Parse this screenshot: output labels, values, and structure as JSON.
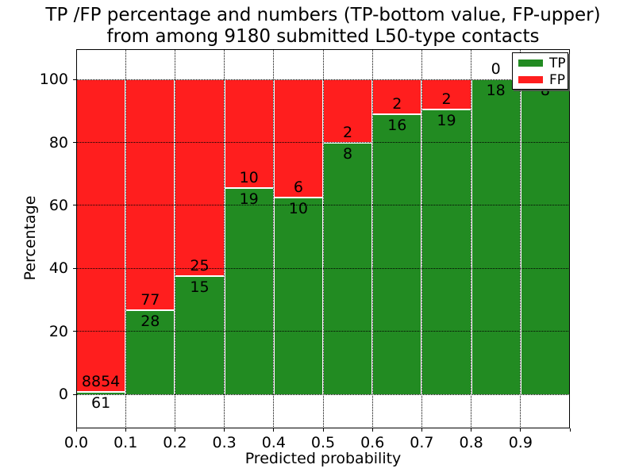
{
  "title": {
    "line1": "TP /FP percentage and numbers (TP-bottom value, FP-upper)",
    "line2": "from among 9180 submitted L50-type contacts"
  },
  "axes": {
    "xlabel": "Predicted probability",
    "ylabel": "Percentage"
  },
  "legend": {
    "items": [
      {
        "label": "TP",
        "color": "#228b22"
      },
      {
        "label": "FP",
        "color": "#ff1e1e"
      }
    ]
  },
  "chart_data": {
    "type": "bar",
    "stacked": true,
    "normalized_to": 100,
    "title": "TP /FP percentage and numbers (TP-bottom value, FP-upper)\nfrom among 9180 submitted L50-type contacts",
    "xlabel": "Predicted probability",
    "ylabel": "Percentage",
    "total_contacts": 9180,
    "categories": [
      "0.0-0.1",
      "0.1-0.2",
      "0.2-0.3",
      "0.3-0.4",
      "0.4-0.5",
      "0.5-0.6",
      "0.6-0.7",
      "0.7-0.8",
      "0.8-0.9",
      "0.9-1.0"
    ],
    "series": [
      {
        "name": "TP",
        "color": "#228b22",
        "counts": [
          61,
          28,
          15,
          19,
          10,
          8,
          16,
          19,
          18,
          8
        ]
      },
      {
        "name": "FP",
        "color": "#ff1e1e",
        "counts": [
          8854,
          77,
          25,
          10,
          6,
          2,
          2,
          2,
          0,
          0
        ]
      }
    ],
    "tp_percentages": [
      0.7,
      26.7,
      37.5,
      65.5,
      62.5,
      80.0,
      88.9,
      90.5,
      100.0,
      100.0
    ],
    "x_tick_labels": [
      "0.0",
      "0.1",
      "0.2",
      "0.3",
      "0.4",
      "0.5",
      "0.6",
      "0.7",
      "0.8",
      "0.9"
    ],
    "y_ticks": [
      0,
      20,
      40,
      60,
      80,
      100
    ],
    "xlim": [
      0.0,
      1.0
    ],
    "ylim": [
      -10.8,
      109.6
    ],
    "grid": "dotted",
    "legend_position": "upper right",
    "bar_edge_color": "#ffffff"
  }
}
